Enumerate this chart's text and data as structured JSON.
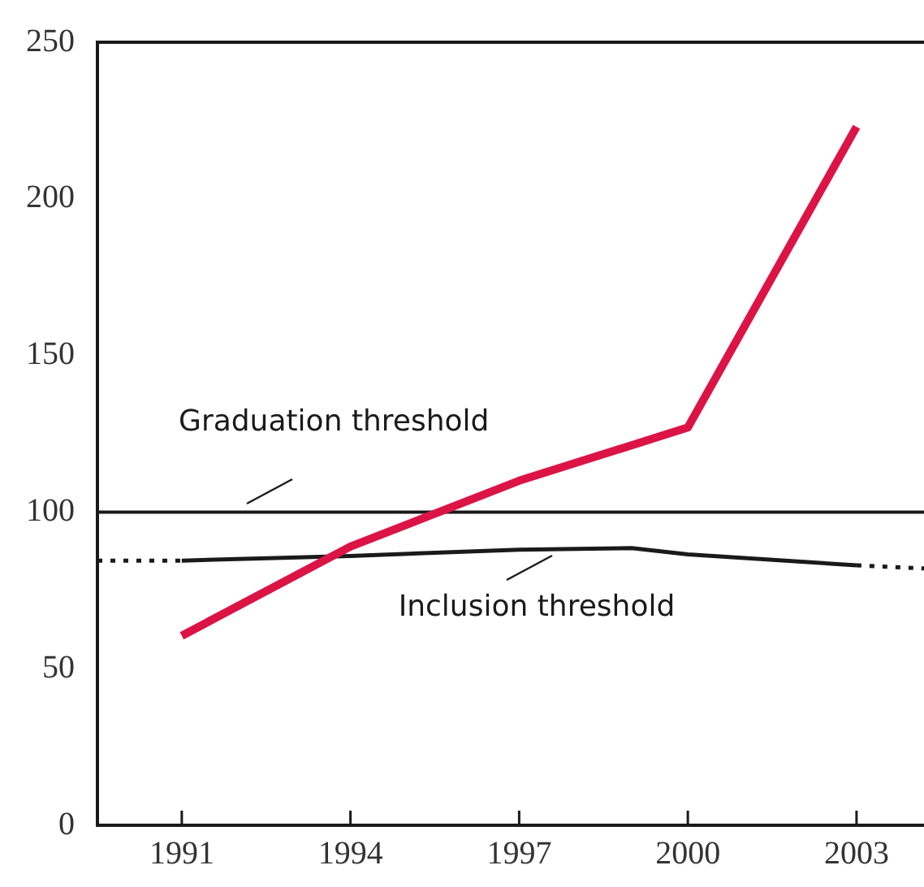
{
  "chart_data": {
    "type": "line",
    "xlim": [
      1989.5,
      2004.2
    ],
    "xticks": [
      1991,
      1994,
      1997,
      2000,
      2003
    ],
    "ylim": [
      0,
      250
    ],
    "yticks": [
      0,
      50,
      100,
      150,
      200,
      250
    ],
    "grid": false,
    "legend": false,
    "marker": "none",
    "series": [
      {
        "color": "#dc1446",
        "x": [
          1991,
          1994,
          1997,
          2000,
          2003
        ],
        "values": [
          60.5,
          89,
          110,
          127,
          223
        ]
      },
      {
        "color": "#1a1a1a",
        "x": [
          1991,
          1994,
          1997,
          1999,
          2000,
          2003
        ],
        "values": [
          84.5,
          86,
          88,
          88.5,
          86.5,
          83
        ]
      },
      {
        "color": "#1a1a1a",
        "line_style": "dotted",
        "x": [
          1989.5,
          1991,
          1997,
          2003,
          2004.2
        ],
        "values": [
          84.5,
          84.5,
          null,
          83,
          82
        ]
      }
    ],
    "ref_lines": [
      {
        "axis": "y",
        "value": 100,
        "label": "Graduation threshold",
        "color": "#1a1a1a"
      }
    ],
    "annotations": [
      {
        "text": "Inclusion threshold",
        "x": 1997.6,
        "y": 87
      }
    ]
  }
}
